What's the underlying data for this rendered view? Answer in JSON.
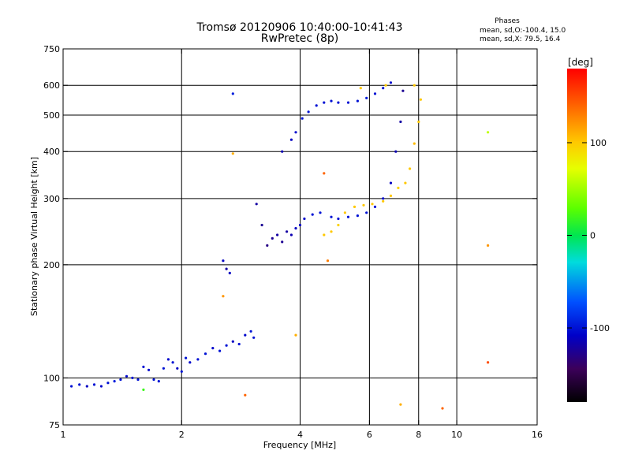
{
  "chart_data": {
    "type": "scatter",
    "title": "Tromsø 20120906 10:40:00-10:41:43",
    "subtitle": "RwPretec (8p)",
    "stats": {
      "title": "Phases",
      "line1": "mean, sd,O:-100.4, 15.0",
      "line2": "mean, sd,X:  79.5, 16.4"
    },
    "xlabel": "Frequency [MHz]",
    "ylabel": "Stationary phase Virtual Height [km]",
    "xscale": "log2",
    "yscale": "log",
    "xlim": [
      1,
      16
    ],
    "ylim": [
      75,
      750
    ],
    "xticks": [
      1,
      2,
      4,
      6,
      8,
      10,
      16
    ],
    "xtick_labels": [
      "1",
      "2",
      "4",
      "6",
      "8",
      "10",
      "16"
    ],
    "yticks": [
      75,
      100,
      200,
      300,
      400,
      500,
      600,
      750
    ],
    "ytick_labels": [
      "75",
      "100",
      "200",
      "300",
      "400",
      "500",
      "600",
      "750"
    ],
    "grid_x": [
      2,
      4,
      6,
      8,
      10
    ],
    "grid_y": [
      100,
      200,
      300,
      400,
      500,
      600
    ],
    "colorbar": {
      "label": "[deg]",
      "range": [
        -180,
        180
      ],
      "ticks": [
        100,
        0,
        -100
      ],
      "tick_labels": [
        "100",
        "0",
        "-100"
      ]
    },
    "series": [
      {
        "points": [
          [
            1.05,
            95,
            -100
          ],
          [
            1.1,
            96,
            -100
          ],
          [
            1.15,
            95,
            -110
          ],
          [
            1.2,
            96,
            -100
          ],
          [
            1.25,
            95,
            -105
          ],
          [
            1.3,
            97,
            -100
          ],
          [
            1.35,
            98,
            -95
          ],
          [
            1.4,
            99,
            -100
          ],
          [
            1.45,
            101,
            -105
          ],
          [
            1.5,
            100,
            -100
          ],
          [
            1.55,
            99,
            -100
          ],
          [
            1.6,
            107,
            -100
          ],
          [
            1.65,
            105,
            -105
          ],
          [
            1.7,
            99,
            -100
          ],
          [
            1.75,
            98,
            -100
          ],
          [
            1.8,
            106,
            -100
          ],
          [
            1.85,
            112,
            -105
          ],
          [
            1.9,
            110,
            -100
          ],
          [
            1.95,
            106,
            -110
          ],
          [
            2.0,
            104,
            -100
          ],
          [
            2.05,
            113,
            -100
          ],
          [
            2.1,
            110,
            -105
          ],
          [
            2.2,
            112,
            -100
          ],
          [
            2.3,
            116,
            -100
          ],
          [
            2.4,
            120,
            -105
          ],
          [
            2.5,
            118,
            -100
          ],
          [
            2.6,
            122,
            -100
          ],
          [
            2.7,
            125,
            -110
          ],
          [
            2.8,
            123,
            -100
          ],
          [
            2.9,
            130,
            -105
          ],
          [
            3.0,
            133,
            -100
          ],
          [
            3.05,
            128,
            -100
          ],
          [
            2.55,
            205,
            -110
          ],
          [
            2.6,
            195,
            -120
          ],
          [
            2.65,
            190,
            -110
          ],
          [
            3.1,
            290,
            -120
          ],
          [
            3.2,
            255,
            -125
          ],
          [
            3.3,
            225,
            -130
          ],
          [
            3.4,
            235,
            -125
          ],
          [
            3.5,
            240,
            -120
          ],
          [
            3.6,
            230,
            -125
          ],
          [
            3.7,
            245,
            -120
          ],
          [
            3.8,
            240,
            -115
          ],
          [
            3.9,
            250,
            -110
          ],
          [
            4.0,
            255,
            -110
          ],
          [
            4.1,
            265,
            -105
          ],
          [
            4.3,
            272,
            -100
          ],
          [
            4.5,
            275,
            -100
          ],
          [
            4.8,
            268,
            -100
          ],
          [
            5.0,
            265,
            -100
          ],
          [
            5.3,
            268,
            -100
          ],
          [
            5.6,
            270,
            -100
          ],
          [
            5.9,
            275,
            -100
          ],
          [
            6.2,
            285,
            -100
          ],
          [
            6.5,
            300,
            -105
          ],
          [
            6.8,
            330,
            -110
          ],
          [
            7.0,
            400,
            -115
          ],
          [
            7.2,
            480,
            -120
          ],
          [
            7.3,
            580,
            -125
          ],
          [
            3.6,
            400,
            -115
          ],
          [
            3.8,
            430,
            -110
          ],
          [
            3.9,
            450,
            -105
          ],
          [
            4.05,
            490,
            -100
          ],
          [
            4.2,
            510,
            -100
          ],
          [
            4.4,
            530,
            -100
          ],
          [
            4.6,
            540,
            -100
          ],
          [
            4.8,
            545,
            -100
          ],
          [
            5.0,
            540,
            -100
          ],
          [
            5.3,
            540,
            -100
          ],
          [
            5.6,
            545,
            -100
          ],
          [
            5.9,
            555,
            -95
          ],
          [
            6.2,
            570,
            -100
          ],
          [
            6.5,
            590,
            -100
          ],
          [
            6.8,
            610,
            -105
          ],
          [
            2.7,
            570,
            -95
          ],
          [
            1.6,
            93,
            20
          ]
        ]
      },
      {
        "points": [
          [
            4.6,
            240,
            100
          ],
          [
            4.8,
            245,
            100
          ],
          [
            5.0,
            255,
            95
          ],
          [
            5.2,
            275,
            100
          ],
          [
            5.5,
            285,
            100
          ],
          [
            5.8,
            288,
            100
          ],
          [
            6.1,
            290,
            100
          ],
          [
            6.5,
            295,
            100
          ],
          [
            6.8,
            305,
            100
          ],
          [
            7.1,
            320,
            95
          ],
          [
            7.4,
            330,
            100
          ],
          [
            7.6,
            360,
            100
          ],
          [
            7.8,
            420,
            105
          ],
          [
            8.0,
            480,
            100
          ],
          [
            8.1,
            550,
            100
          ],
          [
            7.8,
            600,
            100
          ],
          [
            5.7,
            590,
            100
          ],
          [
            6.6,
            600,
            100
          ],
          [
            4.6,
            350,
            140
          ],
          [
            4.7,
            205,
            130
          ],
          [
            2.9,
            90,
            140
          ],
          [
            7.2,
            85,
            110
          ],
          [
            9.2,
            83,
            140
          ],
          [
            3.9,
            130,
            110
          ],
          [
            2.55,
            165,
            120
          ],
          [
            2.7,
            395,
            110
          ],
          [
            12.0,
            450,
            60
          ],
          [
            12.0,
            225,
            120
          ],
          [
            12.0,
            110,
            150
          ]
        ]
      }
    ]
  }
}
